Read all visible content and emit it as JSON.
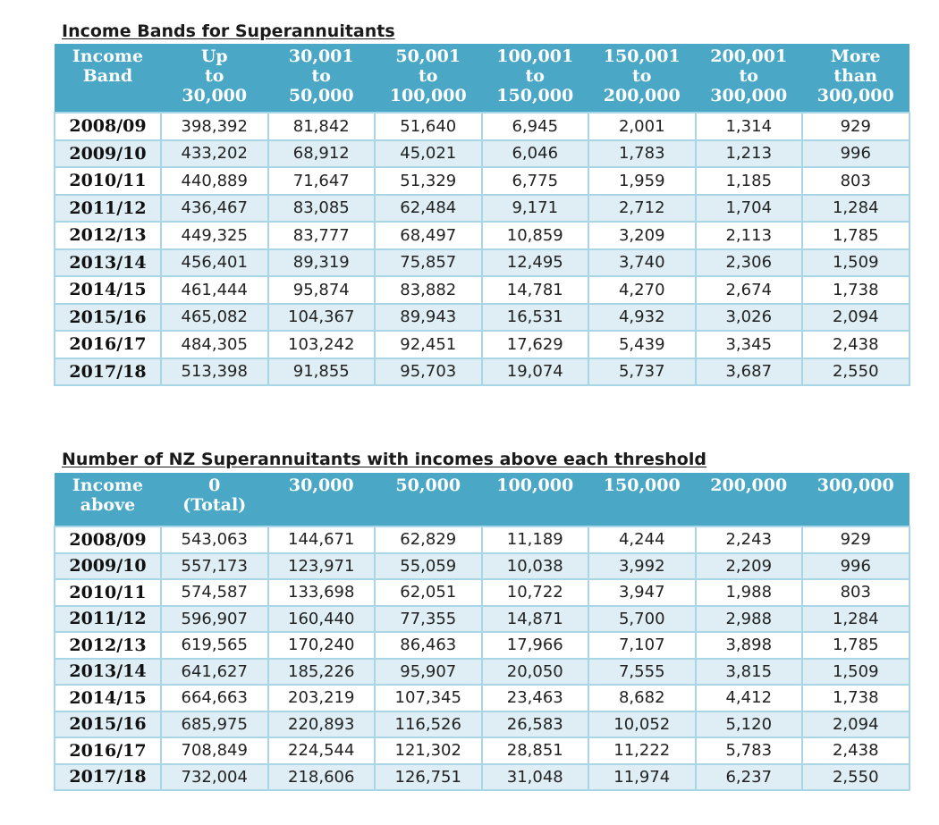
{
  "table1": {
    "title": "Income Bands for Superannuitants",
    "headers": [
      [
        "Income",
        "Band"
      ],
      [
        "Up",
        "to",
        "30,000"
      ],
      [
        "30,001",
        "to",
        "50,000"
      ],
      [
        "50,001",
        "to",
        "100,000"
      ],
      [
        "100,001",
        "to",
        "150,000"
      ],
      [
        "150,001",
        "to",
        "200,000"
      ],
      [
        "200,001",
        "to",
        "300,000"
      ],
      [
        "More",
        "than",
        "300,000"
      ]
    ],
    "rows": [
      [
        "2008/09",
        "398,392",
        "81,842",
        "51,640",
        "6,945",
        "2,001",
        "1,314",
        "929"
      ],
      [
        "2009/10",
        "433,202",
        "68,912",
        "45,021",
        "6,046",
        "1,783",
        "1,213",
        "996"
      ],
      [
        "2010/11",
        "440,889",
        "71,647",
        "51,329",
        "6,775",
        "1,959",
        "1,185",
        "803"
      ],
      [
        "2011/12",
        "436,467",
        "83,085",
        "62,484",
        "9,171",
        "2,712",
        "1,704",
        "1,284"
      ],
      [
        "2012/13",
        "449,325",
        "83,777",
        "68,497",
        "10,859",
        "3,209",
        "2,113",
        "1,785"
      ],
      [
        "2013/14",
        "456,401",
        "89,319",
        "75,857",
        "12,495",
        "3,740",
        "2,306",
        "1,509"
      ],
      [
        "2014/15",
        "461,444",
        "95,874",
        "83,882",
        "14,781",
        "4,270",
        "2,674",
        "1,738"
      ],
      [
        "2015/16",
        "465,082",
        "104,367",
        "89,943",
        "16,531",
        "4,932",
        "3,026",
        "2,094"
      ],
      [
        "2016/17",
        "484,305",
        "103,242",
        "92,451",
        "17,629",
        "5,439",
        "3,345",
        "2,438"
      ],
      [
        "2017/18",
        "513,398",
        "91,855",
        "95,703",
        "19,074",
        "5,737",
        "3,687",
        "2,550"
      ]
    ]
  },
  "table2": {
    "title": "Number of NZ Superannuitants with incomes above each threshold",
    "headers": [
      [
        "Income",
        "above"
      ],
      [
        "0",
        "(Total)"
      ],
      [
        "30,000"
      ],
      [
        "50,000"
      ],
      [
        "100,000"
      ],
      [
        "150,000"
      ],
      [
        "200,000"
      ],
      [
        "300,000"
      ]
    ],
    "rows": [
      [
        "2008/09",
        "543,063",
        "144,671",
        "62,829",
        "11,189",
        "4,244",
        "2,243",
        "929"
      ],
      [
        "2009/10",
        "557,173",
        "123,971",
        "55,059",
        "10,038",
        "3,992",
        "2,209",
        "996"
      ],
      [
        "2010/11",
        "574,587",
        "133,698",
        "62,051",
        "10,722",
        "3,947",
        "1,988",
        "803"
      ],
      [
        "2011/12",
        "596,907",
        "160,440",
        "77,355",
        "14,871",
        "5,700",
        "2,988",
        "1,284"
      ],
      [
        "2012/13",
        "619,565",
        "170,240",
        "86,463",
        "17,966",
        "7,107",
        "3,898",
        "1,785"
      ],
      [
        "2013/14",
        "641,627",
        "185,226",
        "95,907",
        "20,050",
        "7,555",
        "3,815",
        "1,509"
      ],
      [
        "2014/15",
        "664,663",
        "203,219",
        "107,345",
        "23,463",
        "8,682",
        "4,412",
        "1,738"
      ],
      [
        "2015/16",
        "685,975",
        "220,893",
        "116,526",
        "26,583",
        "10,052",
        "5,120",
        "2,094"
      ],
      [
        "2016/17",
        "708,849",
        "224,544",
        "121,302",
        "28,851",
        "11,222",
        "5,783",
        "2,438"
      ],
      [
        "2017/18",
        "732,004",
        "218,606",
        "126,751",
        "31,048",
        "11,974",
        "6,237",
        "2,550"
      ]
    ]
  },
  "colors": {
    "header_background": "#4aa8c6",
    "header_text": "#ffffff",
    "row_alt_background": "#deeef4",
    "cell_border": "#a9d6e6"
  }
}
